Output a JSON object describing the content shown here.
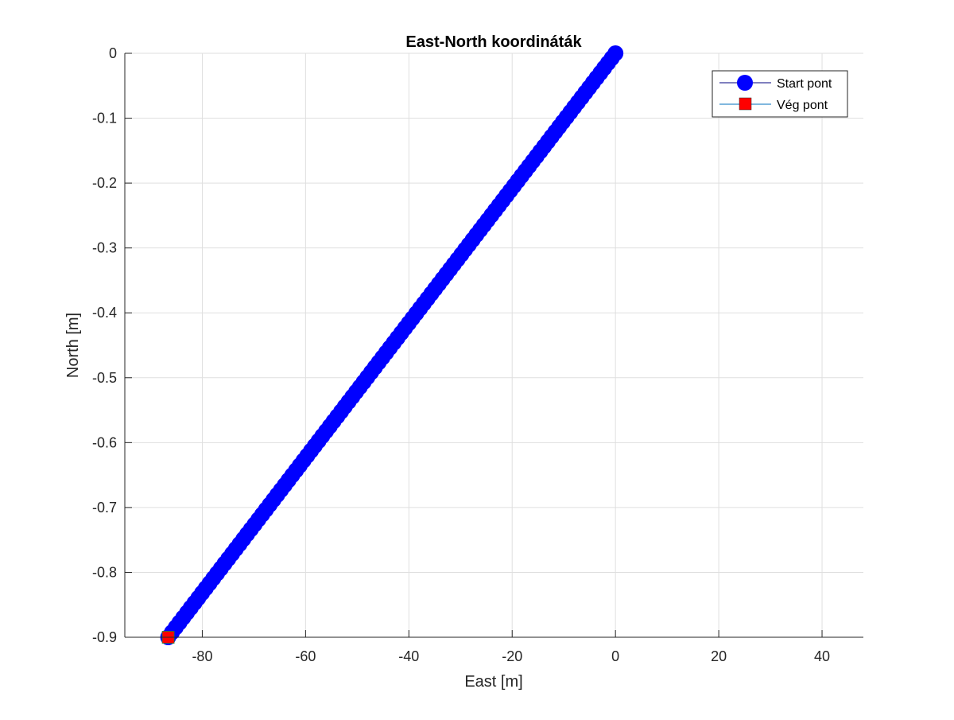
{
  "chart_data": {
    "type": "scatter",
    "title": "East-North koordináták",
    "xlabel": "East [m]",
    "ylabel": "North [m]",
    "xlim": [
      -95,
      48
    ],
    "ylim": [
      -0.9,
      0
    ],
    "xticks": [
      -80,
      -60,
      -40,
      -20,
      0,
      20,
      40
    ],
    "xtick_labels": [
      "-80",
      "-60",
      "-40",
      "-20",
      "0",
      "20",
      "40"
    ],
    "yticks": [
      0,
      -0.1,
      -0.2,
      -0.3,
      -0.4,
      -0.5,
      -0.6,
      -0.7,
      -0.8,
      -0.9
    ],
    "ytick_labels": [
      "0",
      "-0.1",
      "-0.2",
      "-0.3",
      "-0.4",
      "-0.5",
      "-0.6",
      "-0.7",
      "-0.8",
      "-0.9"
    ],
    "grid": true,
    "legend_position": "top-right",
    "series": [
      {
        "name": "Start pont",
        "marker": "circle",
        "color": "#0000ff",
        "line_color": "#00007f",
        "x_start": 0,
        "y_start": 0,
        "x_end": -86.6,
        "y_end": -0.9,
        "n_points": 120
      },
      {
        "name": "Vég pont",
        "marker": "square",
        "color": "#ff0000",
        "line_color": "#0072bd",
        "x": [
          -86.6
        ],
        "y": [
          -0.9
        ]
      }
    ]
  }
}
